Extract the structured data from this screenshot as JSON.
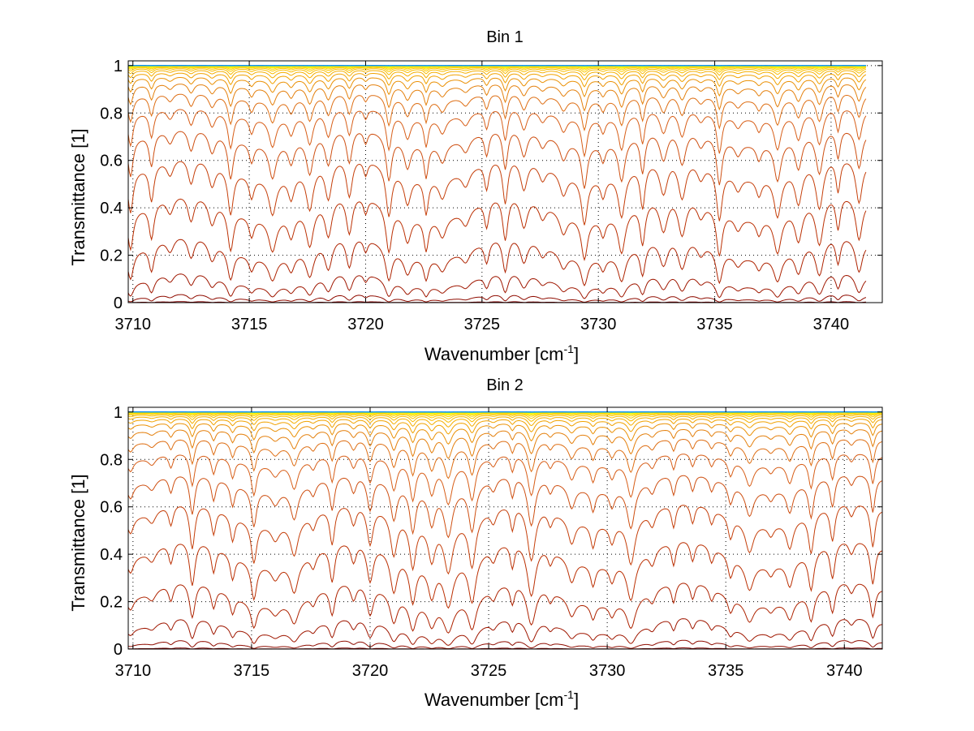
{
  "chart_data": [
    {
      "type": "line",
      "title": "Bin 1",
      "xlabel": "Wavenumber [cm",
      "xlabel_sup": "-1",
      "xlabel_end": "]",
      "ylabel": "Transmittance [1]",
      "xlim": [
        3709.8,
        3742.2
      ],
      "ylim": [
        0,
        1.02
      ],
      "x_data_range": [
        3709.8,
        3741.5
      ],
      "xticks": [
        3710,
        3715,
        3720,
        3725,
        3730,
        3735,
        3740
      ],
      "xtick_labels": [
        "3710",
        "3715",
        "3720",
        "3725",
        "3730",
        "3735",
        "3740"
      ],
      "yticks": [
        0,
        0.2,
        0.4,
        0.6,
        0.8,
        1
      ],
      "ytick_labels": [
        "0",
        "0.2",
        "0.4",
        "0.6",
        "0.8",
        "1"
      ],
      "grid": true,
      "series_count": 30,
      "color_map": [
        "#800000",
        "#b82a00",
        "#d9621a",
        "#f0a000",
        "#ffd000",
        "#ffff00",
        "#a0f060",
        "#20d0d0",
        "#0080ff"
      ],
      "absorption_lines": [
        3709.9,
        3710.8,
        3711.6,
        3712.5,
        3713.4,
        3714.2,
        3715.1,
        3716.0,
        3716.8,
        3717.6,
        3718.4,
        3719.3,
        3720.0,
        3721.0,
        3721.8,
        3722.6,
        3723.3,
        3724.3,
        3725.2,
        3726.0,
        3726.8,
        3727.6,
        3728.5,
        3729.4,
        3730.2,
        3731.0,
        3731.9,
        3732.8,
        3733.6,
        3734.4,
        3735.2,
        3736.0,
        3736.9,
        3737.7,
        3738.6,
        3739.5,
        3740.3,
        3741.2
      ]
    },
    {
      "type": "line",
      "title": "Bin 2",
      "xlabel": "Wavenumber [cm",
      "xlabel_sup": "-1",
      "xlabel_end": "]",
      "ylabel": "Transmittance [1]",
      "xlim": [
        3709.8,
        3741.6
      ],
      "ylim": [
        0,
        1.02
      ],
      "x_data_range": [
        3709.8,
        3741.6
      ],
      "xticks": [
        3710,
        3715,
        3720,
        3725,
        3730,
        3735,
        3740
      ],
      "xtick_labels": [
        "3710",
        "3715",
        "3720",
        "3725",
        "3730",
        "3735",
        "3740"
      ],
      "yticks": [
        0,
        0.2,
        0.4,
        0.6,
        0.8,
        1
      ],
      "ytick_labels": [
        "0",
        "0.2",
        "0.4",
        "0.6",
        "0.8",
        "1"
      ],
      "grid": true,
      "series_count": 30,
      "color_map": [
        "#800000",
        "#b82a00",
        "#d9621a",
        "#f0a000",
        "#ffd000",
        "#ffff00",
        "#a0f060",
        "#20d0d0",
        "#0080ff"
      ],
      "absorption_lines": [
        3709.9,
        3710.8,
        3711.6,
        3712.5,
        3713.4,
        3714.2,
        3715.1,
        3716.0,
        3716.8,
        3717.6,
        3718.4,
        3719.3,
        3720.0,
        3721.0,
        3721.8,
        3722.6,
        3723.3,
        3724.3,
        3725.2,
        3726.0,
        3726.8,
        3727.6,
        3728.5,
        3729.4,
        3730.2,
        3731.0,
        3731.9,
        3732.8,
        3733.6,
        3734.4,
        3735.2,
        3736.0,
        3736.9,
        3737.7,
        3738.6,
        3739.5,
        3740.3,
        3741.2
      ]
    }
  ]
}
